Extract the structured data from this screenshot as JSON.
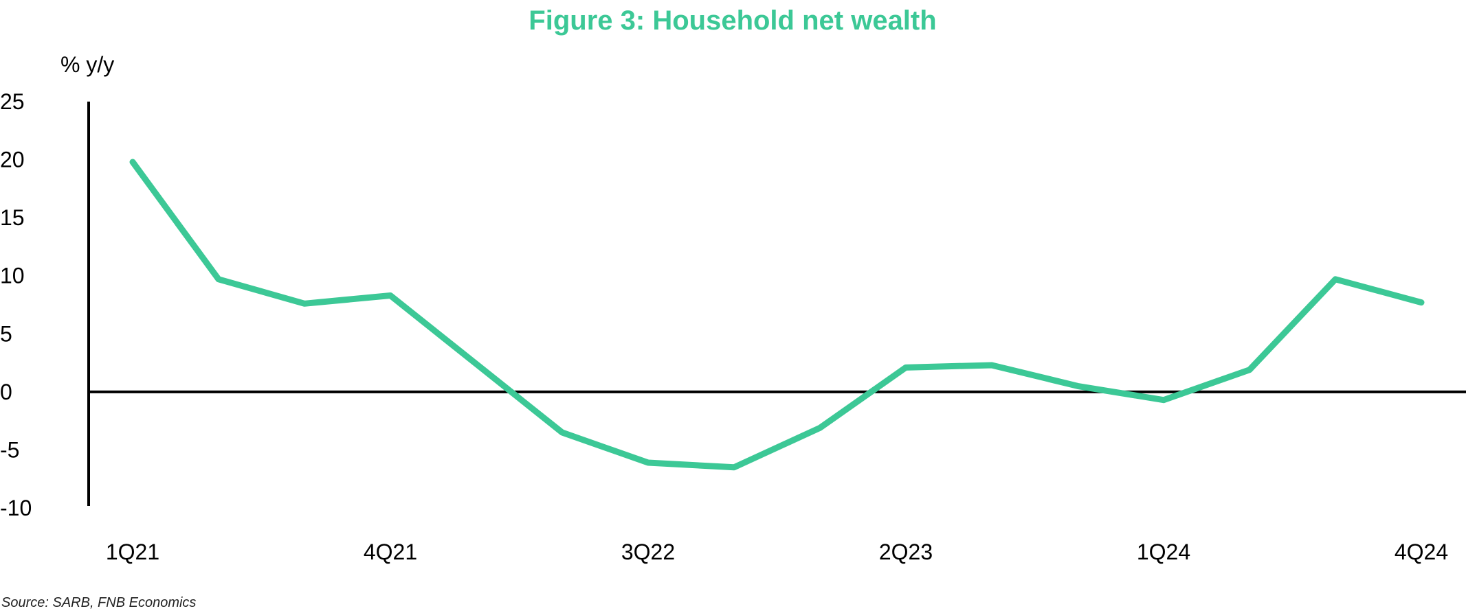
{
  "colors": {
    "line": "#3cc896",
    "title": "#3cc896",
    "axis": "#000000"
  },
  "chart_data": {
    "type": "line",
    "title": "Figure 3: Household net wealth",
    "ylabel": "% y/y",
    "xlabel": "",
    "source": "Source: SARB, FNB Economics",
    "ylim": [
      -10,
      25
    ],
    "yticks": [
      25,
      20,
      15,
      10,
      5,
      0,
      -5,
      -10
    ],
    "x_tick_labels": [
      "1Q21",
      "4Q21",
      "3Q22",
      "2Q23",
      "1Q24",
      "4Q24"
    ],
    "x": [
      "1Q21",
      "2Q21",
      "3Q21",
      "4Q21",
      "1Q22",
      "2Q22",
      "3Q22",
      "4Q22",
      "1Q23",
      "2Q23",
      "3Q23",
      "4Q23",
      "1Q24",
      "2Q24",
      "3Q24",
      "4Q24"
    ],
    "series": [
      {
        "values": [
          19.8,
          9.7,
          7.6,
          8.3,
          2.4,
          -3.5,
          -6.1,
          -6.5,
          -3.1,
          2.1,
          2.3,
          0.5,
          -0.7,
          1.9,
          9.7,
          7.7
        ]
      }
    ],
    "grid": false,
    "legend": "none"
  }
}
